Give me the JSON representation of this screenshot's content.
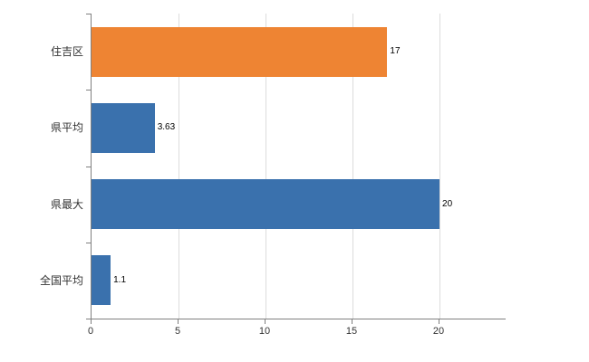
{
  "chart_data": {
    "type": "bar",
    "orientation": "horizontal",
    "title": "",
    "xlabel": "",
    "ylabel": "",
    "categories": [
      "住吉区",
      "県平均",
      "県最大",
      "全国平均"
    ],
    "values": [
      17,
      3.63,
      20,
      1.1
    ],
    "value_labels": [
      "17",
      "3.63",
      "20",
      "1.1"
    ],
    "bar_colors": [
      "#EE8433",
      "#3A71AD",
      "#3A71AD",
      "#3A71AD"
    ],
    "xlim": [
      0,
      23.8
    ],
    "x_ticks": [
      0,
      5,
      10,
      15,
      20
    ],
    "grid": true,
    "legend_position": "none"
  },
  "colors": {
    "orange_bar": "#EE8433",
    "blue_bar": "#3A71AD",
    "axis_line": "#808080",
    "gridline": "#dcdcdc",
    "text": "#333333",
    "background": "#ffffff"
  }
}
